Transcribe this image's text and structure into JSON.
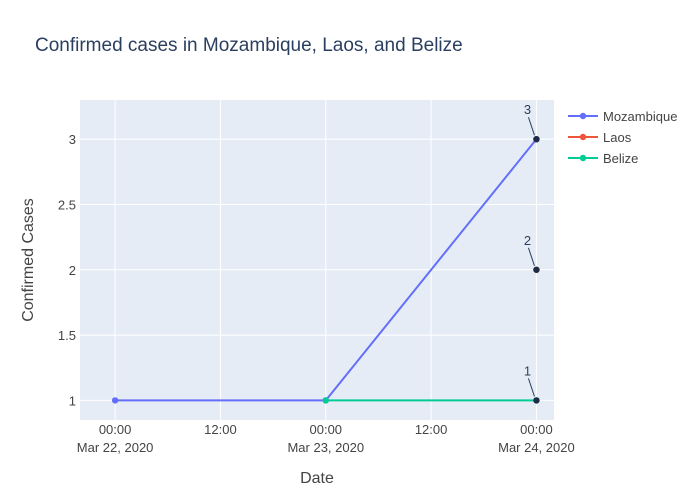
{
  "chart_data": {
    "type": "line",
    "title": "Confirmed cases in Mozambique, Laos, and Belize",
    "xlabel": "Date",
    "ylabel": "Confirmed Cases",
    "x_range": [
      "2020-03-21T20:00",
      "2020-03-24T02:00"
    ],
    "ylim": [
      0.85,
      3.3
    ],
    "y_ticks": [
      1,
      1.5,
      2,
      2.5,
      3
    ],
    "y_tick_labels": [
      "1",
      "1.5",
      "2",
      "2.5",
      "3"
    ],
    "x_ticks": [
      {
        "time": "2020-03-22T00:00",
        "line1": "00:00",
        "line2": "Mar 22, 2020"
      },
      {
        "time": "2020-03-22T12:00",
        "line1": "12:00",
        "line2": ""
      },
      {
        "time": "2020-03-23T00:00",
        "line1": "00:00",
        "line2": "Mar 23, 2020"
      },
      {
        "time": "2020-03-23T12:00",
        "line1": "12:00",
        "line2": ""
      },
      {
        "time": "2020-03-24T00:00",
        "line1": "00:00",
        "line2": "Mar 24, 2020"
      }
    ],
    "grid": true,
    "legend_position": "top-right",
    "series": [
      {
        "name": "Mozambique",
        "color": "#636efa",
        "x": [
          "2020-03-22T00:00",
          "2020-03-23T00:00",
          "2020-03-24T00:00"
        ],
        "values": [
          1,
          1,
          3
        ]
      },
      {
        "name": "Laos",
        "color": "#ef553b",
        "x": [
          "2020-03-24T00:00"
        ],
        "values": [
          2
        ]
      },
      {
        "name": "Belize",
        "color": "#00cc96",
        "x": [
          "2020-03-23T00:00",
          "2020-03-24T00:00"
        ],
        "values": [
          1,
          1
        ]
      }
    ],
    "annotations": [
      {
        "x": "2020-03-24T00:00",
        "y": 3,
        "text": "3"
      },
      {
        "x": "2020-03-24T00:00",
        "y": 2,
        "text": "2"
      },
      {
        "x": "2020-03-24T00:00",
        "y": 1,
        "text": "1"
      }
    ],
    "annotation_marker_color": "#1f2a44"
  }
}
